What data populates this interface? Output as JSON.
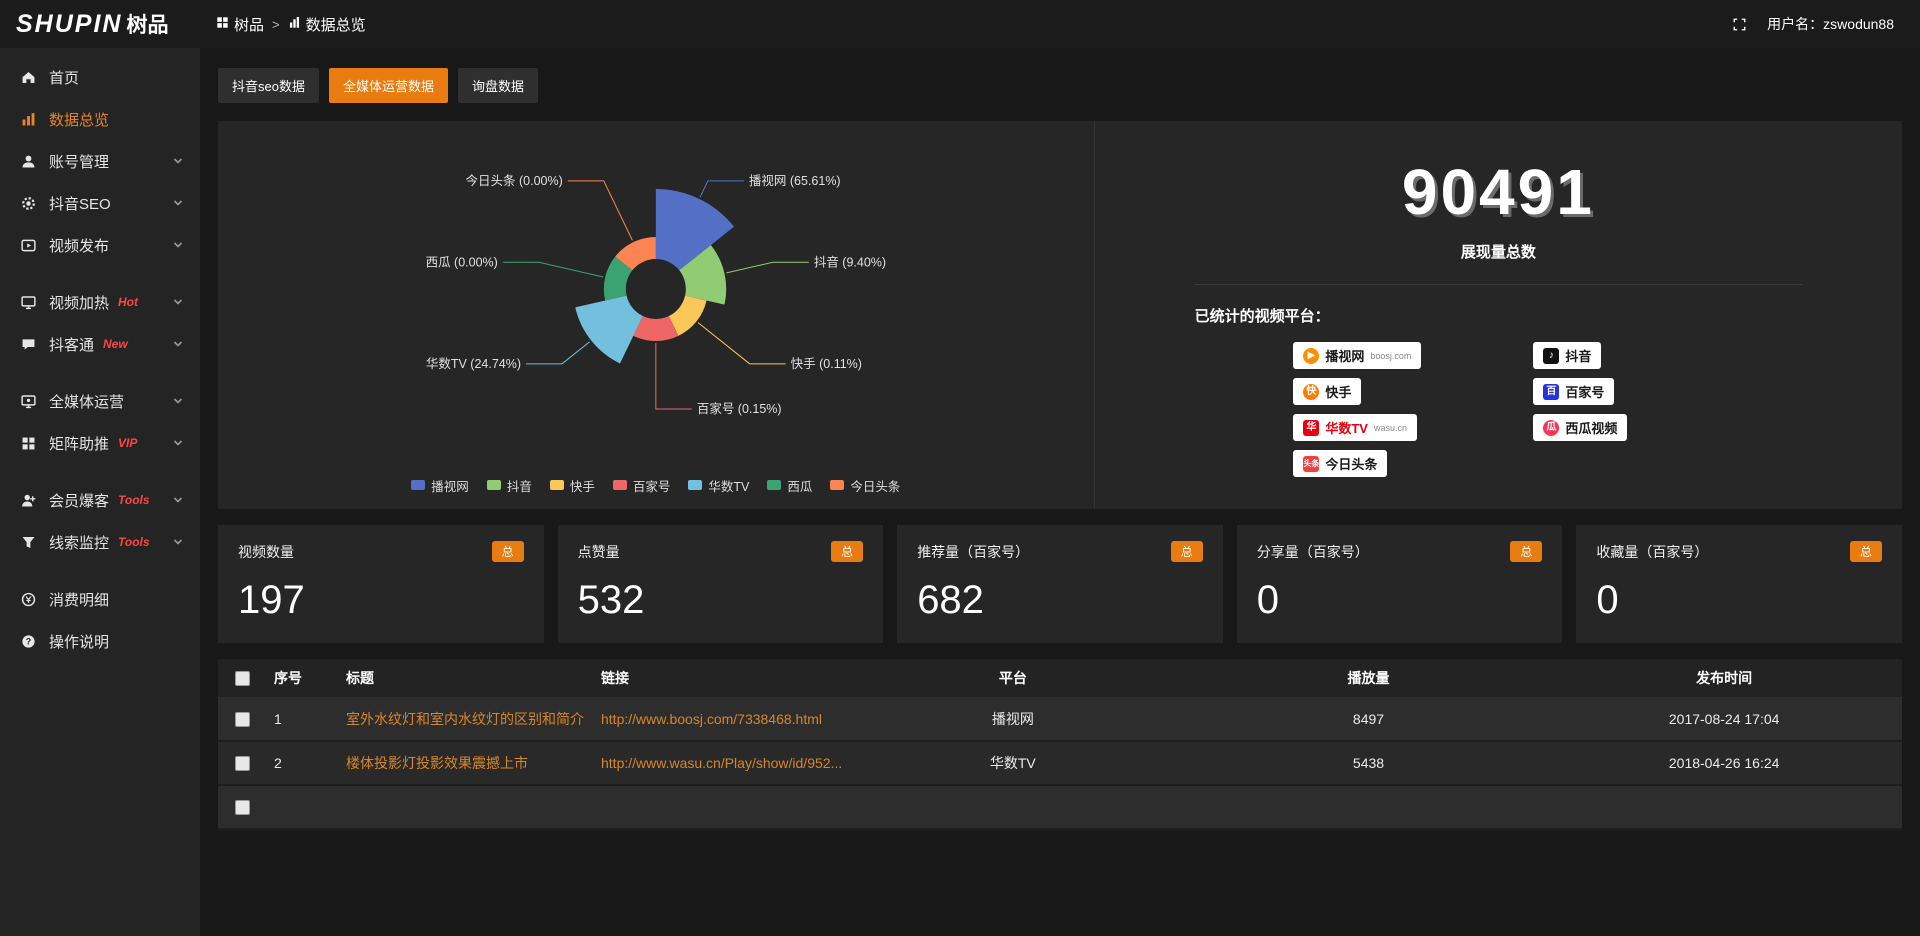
{
  "colors": {
    "accent": "#e87c10",
    "link": "#d8862b",
    "tag_red": "#ff4545"
  },
  "header": {
    "logo_en": "SHUPIN",
    "logo_cn": "树品",
    "breadcrumb_root": "树品",
    "breadcrumb_sep": ">",
    "breadcrumb_current": "数据总览",
    "username": "用户名：zswodun88"
  },
  "sidebar": {
    "items": [
      {
        "id": "home",
        "label": "首页",
        "icon": "home",
        "active": false,
        "expandable": false
      },
      {
        "id": "overview",
        "label": "数据总览",
        "icon": "chart",
        "active": true,
        "expandable": false
      },
      {
        "id": "account",
        "label": "账号管理",
        "icon": "user",
        "active": false,
        "expandable": true
      },
      {
        "id": "douyin-seo",
        "label": "抖音SEO",
        "icon": "gear",
        "active": false,
        "expandable": true
      },
      {
        "id": "publish",
        "label": "视频发布",
        "icon": "video",
        "active": false,
        "expandable": true
      },
      {
        "id": "heat",
        "label": "视频加热",
        "icon": "screen",
        "active": false,
        "expandable": true,
        "tag": "Hot",
        "gap_before": true
      },
      {
        "id": "douketong",
        "label": "抖客通",
        "icon": "chat",
        "active": false,
        "expandable": true,
        "tag": "New"
      },
      {
        "id": "media",
        "label": "全媒体运营",
        "icon": "monitor",
        "active": false,
        "expandable": true,
        "gap_before": true
      },
      {
        "id": "matrix",
        "label": "矩阵助推",
        "icon": "grid",
        "active": false,
        "expandable": true,
        "tag": "VIP"
      },
      {
        "id": "member",
        "label": "会员爆客",
        "icon": "member",
        "active": false,
        "expandable": true,
        "tag": "Tools",
        "gap_before": true
      },
      {
        "id": "leads",
        "label": "线索监控",
        "icon": "funnel",
        "active": false,
        "expandable": true,
        "tag": "Tools"
      },
      {
        "id": "expense",
        "label": "消费明细",
        "icon": "money",
        "active": false,
        "expandable": false,
        "gap_before": true
      },
      {
        "id": "help",
        "label": "操作说明",
        "icon": "help",
        "active": false,
        "expandable": false
      }
    ]
  },
  "tabs": {
    "items": [
      {
        "label": "抖音seo数据",
        "active": false
      },
      {
        "label": "全媒体运营数据",
        "active": true
      },
      {
        "label": "询盘数据",
        "active": false
      }
    ]
  },
  "chart_data": {
    "type": "pie",
    "subtype": "nightingale-rose",
    "title": "",
    "categories": [
      "播视网",
      "抖音",
      "快手",
      "百家号",
      "华数TV",
      "西瓜",
      "今日头条"
    ],
    "values": [
      65.61,
      9.4,
      0.11,
      0.15,
      24.74,
      0.0,
      0.0
    ],
    "unit": "%",
    "labels": [
      "播视网 (65.61%)",
      "抖音 (9.40%)",
      "快手 (0.11%)",
      "百家号 (0.15%)",
      "华数TV (24.74%)",
      "西瓜 (0.00%)",
      "今日头条 (0.00%)"
    ],
    "colors": [
      "#5470c6",
      "#91cc75",
      "#fac858",
      "#ee6666",
      "#73c0de",
      "#3ba272",
      "#fc8452"
    ],
    "legend_position": "bottom",
    "legend": [
      "播视网",
      "抖音",
      "快手",
      "百家号",
      "华数TV",
      "西瓜",
      "今日头条"
    ]
  },
  "overview": {
    "total": "90491",
    "total_label": "展现量总数",
    "platforms_title": "已统计的视频平台：",
    "platforms": [
      {
        "name": "播视网",
        "sub": "boosj.com",
        "icon": "boosj-icon",
        "icon_text": "▶",
        "icon_color": "#ff9100",
        "round": true
      },
      {
        "name": "快手",
        "icon": "kuaishou-icon",
        "icon_text": "快",
        "icon_color": "#ff7e00",
        "round": true
      },
      {
        "name": "华数TV",
        "sub": "wasu.cn",
        "icon": "wasu-icon",
        "icon_text": "华",
        "icon_color": "#e60012",
        "name_color": "#e60012"
      },
      {
        "name": "今日头条",
        "icon": "toutiao-icon",
        "icon_text": "头条",
        "icon_color": "#f04142",
        "two": true
      },
      {
        "name": "抖音",
        "icon": "douyin-icon",
        "icon_text": "♪",
        "icon_color": "#111111"
      },
      {
        "name": "百家号",
        "icon": "baijiahao-icon",
        "icon_text": "百",
        "icon_color": "#2932e1"
      },
      {
        "name": "西瓜视频",
        "icon": "xigua-icon",
        "icon_text": "瓜",
        "icon_color": "#fe3355",
        "round": true
      }
    ]
  },
  "stat_cards": [
    {
      "title": "视频数量",
      "badge": "总",
      "value": "197"
    },
    {
      "title": "点赞量",
      "badge": "总",
      "value": "532"
    },
    {
      "title": "推荐量（百家号）",
      "badge": "总",
      "value": "682"
    },
    {
      "title": "分享量（百家号）",
      "badge": "总",
      "value": "0"
    },
    {
      "title": "收藏量（百家号）",
      "badge": "总",
      "value": "0"
    }
  ],
  "table": {
    "headers": [
      "序号",
      "标题",
      "链接",
      "平台",
      "播放量",
      "发布时间"
    ],
    "rows": [
      {
        "seq": "1",
        "title": "室外水纹灯和室内水纹灯的区别和简介",
        "link": "http://www.boosj.com/7338468.html",
        "platform": "播视网",
        "plays": "8497",
        "time": "2017-08-24 17:04"
      },
      {
        "seq": "2",
        "title": "楼体投影灯投影效果震撼上市",
        "link": "http://www.wasu.cn/Play/show/id/952...",
        "platform": "华数TV",
        "plays": "5438",
        "time": "2018-04-26 16:24"
      },
      {
        "seq": "",
        "title": "",
        "link": "",
        "platform": "",
        "plays": "",
        "time": "",
        "partial": true
      }
    ]
  }
}
